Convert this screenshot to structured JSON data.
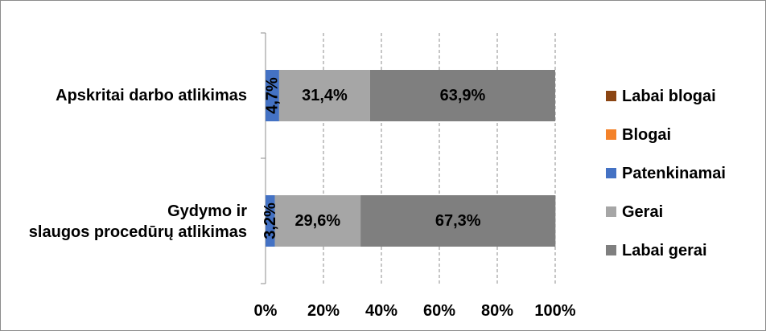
{
  "chart_data": {
    "type": "bar",
    "orientation": "horizontal",
    "stacked": "percent",
    "categories": [
      "Apskritai darbo atlikimas",
      "Gydymo ir slaugos procedūrų atlikimas"
    ],
    "series": [
      {
        "name": "Labai blogai",
        "color": "#8B4513",
        "values": [
          0,
          0
        ]
      },
      {
        "name": "Blogai",
        "color": "#F4822A",
        "values": [
          0,
          0
        ]
      },
      {
        "name": "Patenkinamai",
        "color": "#4472C4",
        "values": [
          4.7,
          3.2
        ],
        "labels": [
          "4,7%",
          "3,2%"
        ]
      },
      {
        "name": "Gerai",
        "color": "#A6A6A6",
        "values": [
          31.4,
          29.6
        ],
        "labels": [
          "31,4%",
          "29,6%"
        ]
      },
      {
        "name": "Labai gerai",
        "color": "#7F7F7F",
        "values": [
          63.9,
          67.3
        ],
        "labels": [
          "63,9%",
          "67,3%"
        ]
      }
    ],
    "xlim": [
      0,
      100
    ],
    "x_ticks": [
      "0%",
      "20%",
      "40%",
      "60%",
      "80%",
      "100%"
    ],
    "grid": "vertical dashed",
    "legend_position": "right"
  }
}
